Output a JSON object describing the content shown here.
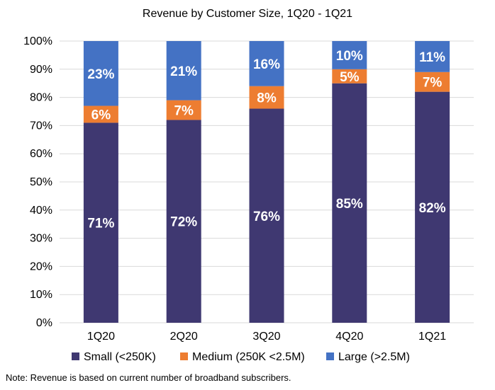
{
  "chart_data": {
    "type": "bar",
    "stacked": true,
    "title": "Revenue by Customer Size, 1Q20 - 1Q21",
    "categories": [
      "1Q20",
      "2Q20",
      "3Q20",
      "4Q20",
      "1Q21"
    ],
    "series": [
      {
        "name": "Small (<250K)",
        "color": "#3f3871",
        "values": [
          71,
          72,
          76,
          85,
          82
        ],
        "labels": [
          "71%",
          "72%",
          "76%",
          "85%",
          "82%"
        ]
      },
      {
        "name": "Medium (250K <2.5M)",
        "color": "#ed7d31",
        "values": [
          6,
          7,
          8,
          5,
          7
        ],
        "labels": [
          "6%",
          "7%",
          "8%",
          "5%",
          "7%"
        ]
      },
      {
        "name": "Large (>2.5M)",
        "color": "#4472c4",
        "values": [
          23,
          21,
          16,
          10,
          11
        ],
        "labels": [
          "23%",
          "21%",
          "16%",
          "10%",
          "11%"
        ]
      }
    ],
    "ylim": [
      0,
      100
    ],
    "yticks": [
      "0%",
      "10%",
      "20%",
      "30%",
      "40%",
      "50%",
      "60%",
      "70%",
      "80%",
      "90%",
      "100%"
    ],
    "grid": true,
    "legend": "bottom",
    "xlabel": "",
    "ylabel": ""
  },
  "note": "Note: Revenue is based on current number of broadband subscribers."
}
